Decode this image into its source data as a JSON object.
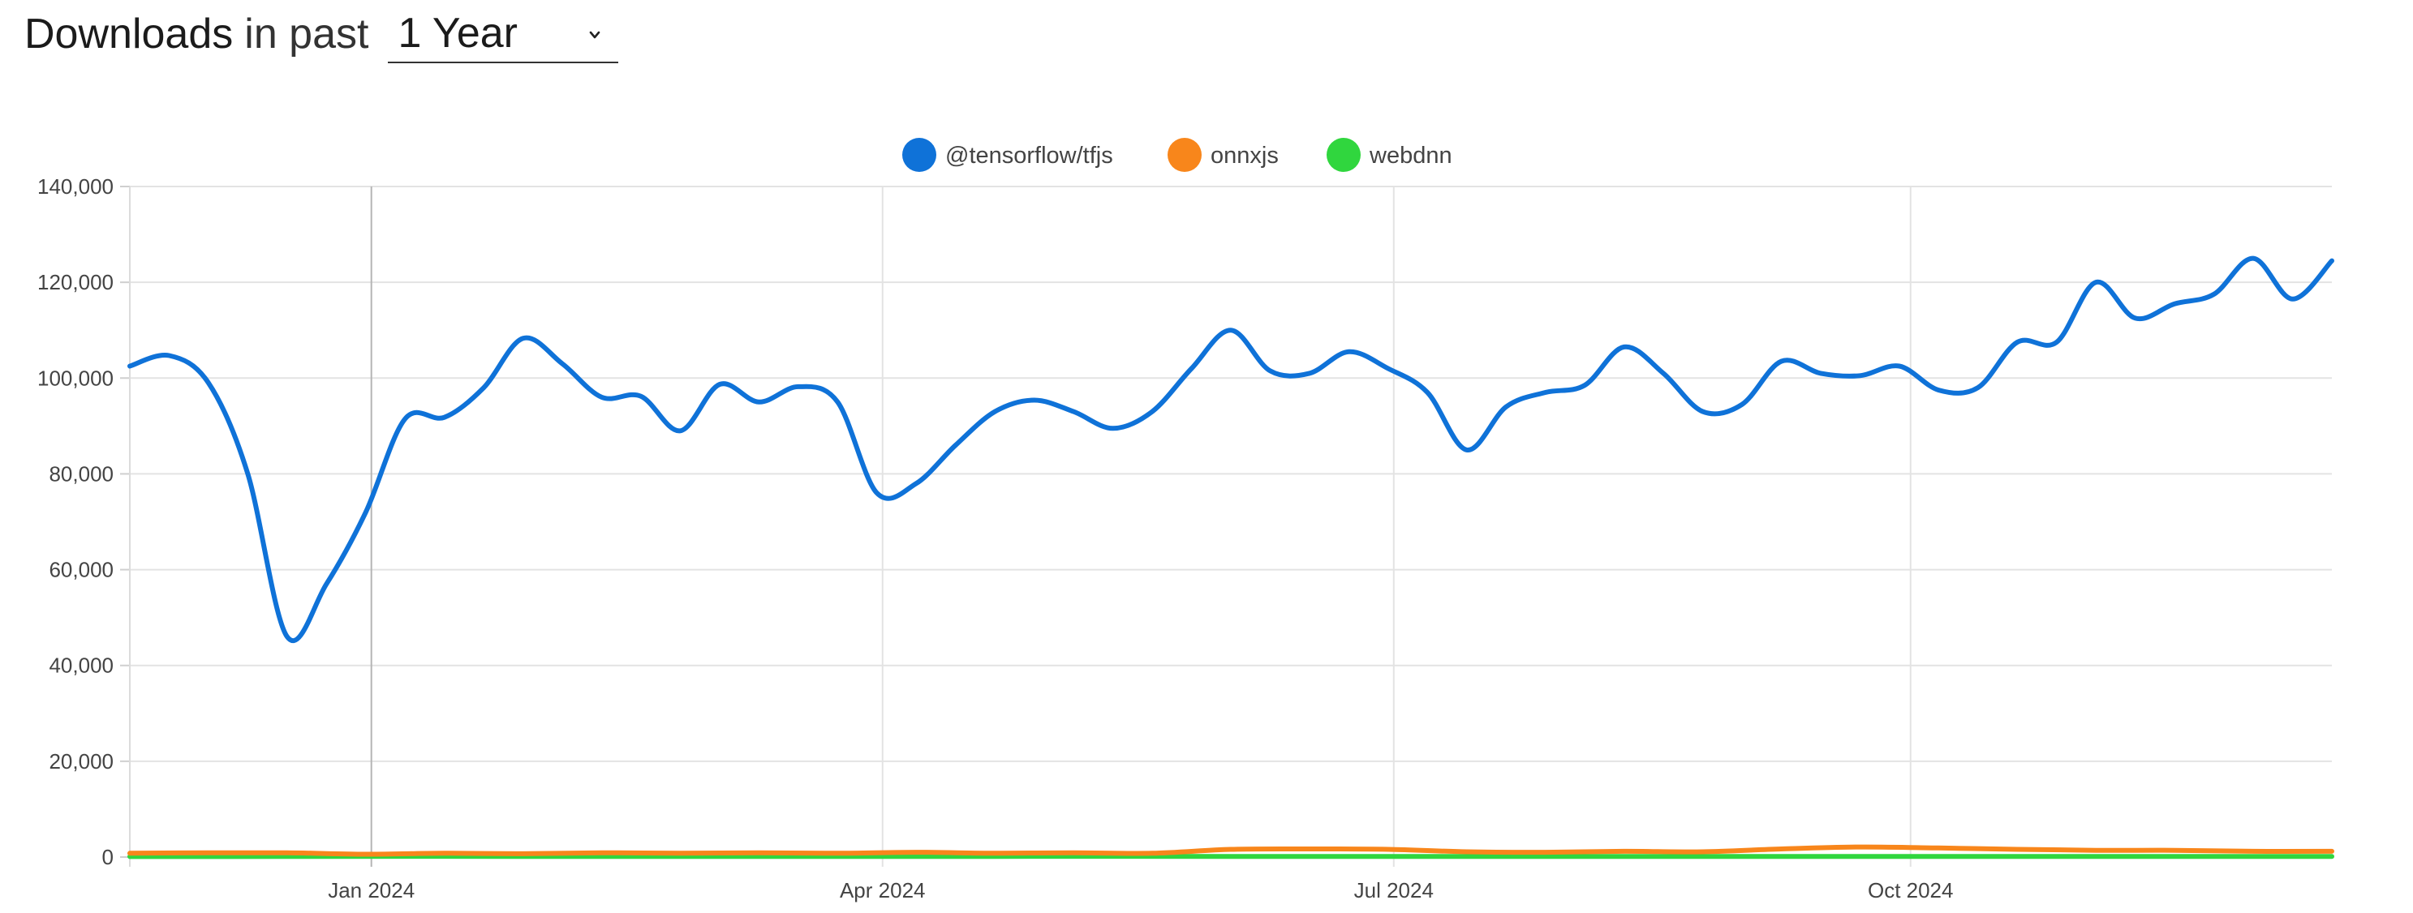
{
  "header": {
    "title_strong": "Downloads",
    "title_rest": "in past",
    "period_selected": "1 Year"
  },
  "chart_data": {
    "type": "line",
    "title": "",
    "xlabel": "",
    "ylabel": "",
    "grid": true,
    "legend_position": "top-center",
    "ylim": [
      0,
      140000
    ],
    "y_ticks": [
      0,
      20000,
      40000,
      60000,
      80000,
      100000,
      120000,
      140000
    ],
    "y_tick_labels": [
      "0",
      "20,000",
      "40,000",
      "60,000",
      "80,000",
      "100,000",
      "120,000",
      "140,000"
    ],
    "x_ticks": [
      {
        "label": "Jan 2024",
        "date": "2024-01-01"
      },
      {
        "label": "Apr 2024",
        "date": "2024-04-01"
      },
      {
        "label": "Jul 2024",
        "date": "2024-07-01"
      },
      {
        "label": "Oct 2024",
        "date": "2024-10-01"
      }
    ],
    "highlight_date": "2024-01-01",
    "series": [
      {
        "name": "@tensorflow/tfjs",
        "color": "#0f72d8",
        "points": [
          [
            "2023-11-19",
            102500
          ],
          [
            "2023-11-26",
            104700
          ],
          [
            "2023-12-03",
            99000
          ],
          [
            "2023-12-10",
            80000
          ],
          [
            "2023-12-17",
            46000
          ],
          [
            "2023-12-24",
            57000
          ],
          [
            "2023-12-31",
            72000
          ],
          [
            "2024-01-07",
            91500
          ],
          [
            "2024-01-14",
            91800
          ],
          [
            "2024-01-21",
            98000
          ],
          [
            "2024-01-28",
            108300
          ],
          [
            "2024-02-04",
            103000
          ],
          [
            "2024-02-11",
            96000
          ],
          [
            "2024-02-18",
            96200
          ],
          [
            "2024-02-25",
            89000
          ],
          [
            "2024-03-03",
            98700
          ],
          [
            "2024-03-10",
            95000
          ],
          [
            "2024-03-17",
            98200
          ],
          [
            "2024-03-24",
            95000
          ],
          [
            "2024-03-31",
            76000
          ],
          [
            "2024-04-07",
            78000
          ],
          [
            "2024-04-14",
            86000
          ],
          [
            "2024-04-21",
            93000
          ],
          [
            "2024-04-28",
            95400
          ],
          [
            "2024-05-05",
            93000
          ],
          [
            "2024-05-12",
            89500
          ],
          [
            "2024-05-19",
            93000
          ],
          [
            "2024-05-26",
            102000
          ],
          [
            "2024-06-02",
            110000
          ],
          [
            "2024-06-09",
            101500
          ],
          [
            "2024-06-16",
            101000
          ],
          [
            "2024-06-23",
            105500
          ],
          [
            "2024-06-30",
            102000
          ],
          [
            "2024-07-07",
            97000
          ],
          [
            "2024-07-14",
            85000
          ],
          [
            "2024-07-21",
            94000
          ],
          [
            "2024-07-28",
            97000
          ],
          [
            "2024-08-04",
            98500
          ],
          [
            "2024-08-11",
            106500
          ],
          [
            "2024-08-18",
            101000
          ],
          [
            "2024-08-25",
            93000
          ],
          [
            "2024-09-01",
            94500
          ],
          [
            "2024-09-08",
            103500
          ],
          [
            "2024-09-15",
            101000
          ],
          [
            "2024-09-22",
            100500
          ],
          [
            "2024-09-29",
            102500
          ],
          [
            "2024-10-06",
            97500
          ],
          [
            "2024-10-13",
            98000
          ],
          [
            "2024-10-20",
            107500
          ],
          [
            "2024-10-27",
            107500
          ],
          [
            "2024-11-03",
            120000
          ],
          [
            "2024-11-10",
            112500
          ],
          [
            "2024-11-17",
            115500
          ],
          [
            "2024-11-24",
            117500
          ],
          [
            "2024-12-01",
            125000
          ],
          [
            "2024-12-08",
            116500
          ],
          [
            "2024-12-15",
            124500
          ]
        ]
      },
      {
        "name": "onnxjs",
        "color": "#f8861b",
        "points": [
          [
            "2023-11-19",
            800
          ],
          [
            "2023-12-03",
            900
          ],
          [
            "2023-12-17",
            900
          ],
          [
            "2023-12-31",
            600
          ],
          [
            "2024-01-14",
            800
          ],
          [
            "2024-01-28",
            700
          ],
          [
            "2024-02-11",
            900
          ],
          [
            "2024-02-25",
            800
          ],
          [
            "2024-03-10",
            900
          ],
          [
            "2024-03-24",
            800
          ],
          [
            "2024-04-07",
            1000
          ],
          [
            "2024-04-21",
            800
          ],
          [
            "2024-05-05",
            900
          ],
          [
            "2024-05-19",
            800
          ],
          [
            "2024-06-02",
            1600
          ],
          [
            "2024-06-16",
            1700
          ],
          [
            "2024-06-30",
            1600
          ],
          [
            "2024-07-14",
            1100
          ],
          [
            "2024-07-28",
            1000
          ],
          [
            "2024-08-11",
            1200
          ],
          [
            "2024-08-25",
            1100
          ],
          [
            "2024-09-08",
            1700
          ],
          [
            "2024-09-22",
            2100
          ],
          [
            "2024-10-06",
            1900
          ],
          [
            "2024-10-20",
            1600
          ],
          [
            "2024-11-03",
            1400
          ],
          [
            "2024-11-17",
            1400
          ],
          [
            "2024-12-01",
            1200
          ],
          [
            "2024-12-15",
            1200
          ]
        ]
      },
      {
        "name": "webdnn",
        "color": "#30d63e",
        "points": [
          [
            "2023-11-19",
            100
          ],
          [
            "2023-12-17",
            120
          ],
          [
            "2024-01-14",
            150
          ],
          [
            "2024-02-11",
            120
          ],
          [
            "2024-03-10",
            140
          ],
          [
            "2024-04-07",
            120
          ],
          [
            "2024-05-05",
            150
          ],
          [
            "2024-06-02",
            130
          ],
          [
            "2024-06-30",
            140
          ],
          [
            "2024-07-28",
            120
          ],
          [
            "2024-08-25",
            140
          ],
          [
            "2024-09-22",
            130
          ],
          [
            "2024-10-20",
            120
          ],
          [
            "2024-11-17",
            130
          ],
          [
            "2024-12-15",
            140
          ]
        ]
      }
    ]
  }
}
